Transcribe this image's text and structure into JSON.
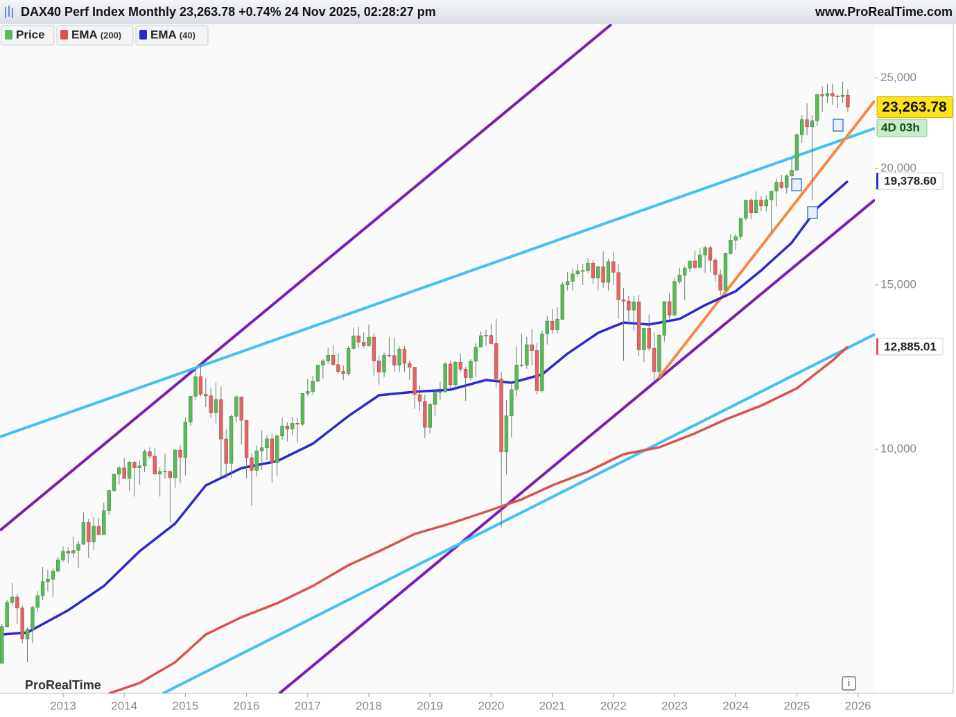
{
  "chart_data": {
    "type": "candlestick",
    "title": "DAX40 Perf Index Monthly 23,263.78 +0.74% 24 Nov 2025, 02:28:27 pm",
    "source": "www.ProRealTime.com",
    "watermark": "ProRealTime",
    "countdown": "4D 03h",
    "price_name": "Price",
    "up_color": "#5cb85c",
    "down_color": "#e06666",
    "log_scale": true,
    "ylim": [
      5477,
      28536
    ],
    "yticks": [
      {
        "value": 10000,
        "label": "10,000"
      },
      {
        "value": 15000,
        "label": "15,000"
      },
      {
        "value": 20000,
        "label": "20,000"
      },
      {
        "value": 25000,
        "label": "25,000"
      }
    ],
    "xticks": [
      {
        "value": 12,
        "label": "2013"
      },
      {
        "value": 24,
        "label": "2014"
      },
      {
        "value": 36,
        "label": "2015"
      },
      {
        "value": 48,
        "label": "2016"
      },
      {
        "value": 60,
        "label": "2017"
      },
      {
        "value": 72,
        "label": "2018"
      },
      {
        "value": 84,
        "label": "2019"
      },
      {
        "value": 96,
        "label": "2020"
      },
      {
        "value": 108,
        "label": "2021"
      },
      {
        "value": 120,
        "label": "2022"
      },
      {
        "value": 132,
        "label": "2023"
      },
      {
        "value": 144,
        "label": "2024"
      },
      {
        "value": 156,
        "label": "2025"
      },
      {
        "value": 168,
        "label": "2026"
      }
    ],
    "open": [
      5900,
      6458,
      6856,
      6947,
      6761,
      6264,
      6416,
      6772,
      6970,
      7216,
      7260,
      7405,
      7612,
      7776,
      7742,
      7795,
      7914,
      8349,
      7959,
      8276,
      8103,
      8594,
      9033,
      9405,
      9552,
      9306,
      9692,
      9556,
      9603,
      9943,
      9833,
      9407,
      9470,
      9474,
      9326,
      9980,
      9805,
      10694,
      11401,
      11966,
      11454,
      11413,
      10945,
      11309,
      10259,
      9660,
      10850,
      11382,
      10743,
      9798,
      9495,
      9965,
      10039,
      10263,
      9680,
      10337,
      10592,
      10511,
      10665,
      10640,
      11481,
      11535,
      11834,
      12313,
      12438,
      12615,
      12325,
      12118,
      12056,
      12829,
      13230,
      13024,
      12918,
      13189,
      12436,
      12097,
      12612,
      12605,
      12306,
      12806,
      12364,
      12247,
      11447,
      11257,
      10559,
      11173,
      11516,
      11526,
      12344,
      11727,
      12399,
      12189,
      11939,
      12428,
      12867,
      13236,
      13249,
      12982,
      11890,
      9936,
      10862,
      11587,
      12311,
      12313,
      12945,
      12761,
      11556,
      13291,
      13719,
      13433,
      13786,
      15008,
      15136,
      15421,
      15531,
      15544,
      15835,
      15261,
      15689,
      15100,
      15885,
      15471,
      14461,
      14415,
      14098,
      14388,
      12784,
      13484,
      12835,
      12114,
      13253,
      14397,
      13924,
      15128,
      15365,
      15629,
      15922,
      15664,
      16148,
      16447,
      15947,
      15387,
      14810,
      16215,
      16752,
      16904,
      17678,
      18492,
      17932,
      18498,
      18235,
      18509,
      18907,
      19325,
      19078,
      19626,
      19909,
      21732,
      22551,
      22163,
      22497,
      23997,
      23910,
      24065,
      23902,
      23881,
      23958
    ],
    "high": [
      6500,
      6900,
      7195,
      7000,
      6800,
      6450,
      6800,
      7050,
      7480,
      7430,
      7460,
      7670,
      7870,
      7850,
      8060,
      7980,
      8560,
      8420,
      8460,
      8440,
      8770,
      9050,
      9420,
      9600,
      9790,
      9720,
      9720,
      9730,
      10000,
      10050,
      10030,
      9570,
      9890,
      9480,
      10000,
      10100,
      10820,
      11400,
      12220,
      12390,
      11920,
      11640,
      11800,
      11670,
      10500,
      10900,
      11430,
      11390,
      10750,
      9900,
      10100,
      10480,
      10350,
      10400,
      10380,
      10800,
      10690,
      10830,
      10800,
      11480,
      11900,
      11990,
      12310,
      12490,
      12850,
      12950,
      12680,
      12300,
      12900,
      13500,
      13530,
      13340,
      13600,
      13300,
      12600,
      12700,
      13200,
      13170,
      12890,
      12900,
      12450,
      12250,
      11700,
      11440,
      11200,
      11600,
      11820,
      12400,
      12440,
      12440,
      12660,
      12250,
      12490,
      12990,
      13370,
      13430,
      13640,
      13800,
      12100,
      11300,
      11800,
      12900,
      13300,
      13200,
      13450,
      13000,
      13400,
      13900,
      14130,
      14200,
      15100,
      15500,
      15600,
      15800,
      15800,
      16030,
      15950,
      15720,
      16300,
      16000,
      16290,
      15800,
      14900,
      14600,
      14600,
      14650,
      13450,
      13950,
      13350,
      13300,
      14400,
      14700,
      15270,
      15650,
      15700,
      15900,
      16330,
      16430,
      16530,
      16530,
      16040,
      15580,
      16220,
      17000,
      17030,
      17700,
      18500,
      18570,
      18900,
      18680,
      18700,
      18900,
      19500,
      19680,
      19700,
      20520,
      21800,
      22800,
      23480,
      22800,
      24000,
      24480,
      24640,
      24650,
      24000,
      24770,
      24300
    ],
    "low": [
      5900,
      6450,
      6800,
      6500,
      6200,
      5914,
      6200,
      6700,
      6900,
      7050,
      6950,
      7380,
      7580,
      7550,
      7650,
      7460,
      7900,
      7650,
      7800,
      8100,
      8100,
      8500,
      9000,
      9170,
      9300,
      9020,
      8900,
      9170,
      9450,
      9770,
      9400,
      8900,
      9300,
      8350,
      9100,
      9200,
      9380,
      10600,
      11300,
      11400,
      11100,
      10800,
      10650,
      9340,
      9300,
      9330,
      10700,
      10120,
      9310,
      8700,
      9350,
      9500,
      9730,
      9210,
      9370,
      10250,
      10200,
      10350,
      10170,
      10600,
      11400,
      11450,
      11800,
      11900,
      12350,
      12300,
      12050,
      11870,
      12000,
      12800,
      12850,
      12850,
      12880,
      12000,
      11730,
      11950,
      12550,
      12100,
      12100,
      12100,
      11870,
      11050,
      11000,
      10280,
      10400,
      10860,
      11300,
      11500,
      11620,
      11620,
      12100,
      11270,
      11850,
      11950,
      12860,
      12900,
      12950,
      11650,
      8250,
      9400,
      10300,
      11400,
      12250,
      12200,
      12300,
      11450,
      11500,
      12950,
      13300,
      13300,
      13750,
      14800,
      14800,
      15300,
      15000,
      15450,
      15050,
      14800,
      14900,
      14800,
      15000,
      13800,
      12440,
      13600,
      13380,
      12600,
      12400,
      12750,
      11860,
      11870,
      13050,
      13790,
      13900,
      15050,
      14460,
      15480,
      15600,
      15650,
      15450,
      15470,
      15140,
      14630,
      14800,
      16150,
      16350,
      16800,
      17600,
      17630,
      17900,
      17980,
      18000,
      17020,
      18200,
      19000,
      18800,
      19600,
      19900,
      21300,
      21700,
      18490,
      22200,
      23000,
      23500,
      23400,
      23200,
      23500,
      23000
    ],
    "close": [
      6458,
      6856,
      6947,
      6761,
      6264,
      6416,
      6772,
      6970,
      7216,
      7260,
      7405,
      7612,
      7776,
      7742,
      7795,
      7914,
      8349,
      7959,
      8276,
      8103,
      8594,
      9033,
      9405,
      9552,
      9306,
      9692,
      9556,
      9603,
      9943,
      9833,
      9407,
      9470,
      9474,
      9326,
      9980,
      9805,
      10694,
      11401,
      11966,
      11454,
      11413,
      10945,
      11309,
      10259,
      9660,
      10850,
      11382,
      10743,
      9798,
      9495,
      9965,
      10039,
      10263,
      9680,
      10337,
      10592,
      10511,
      10665,
      10640,
      11481,
      11535,
      11834,
      12313,
      12438,
      12615,
      12325,
      12118,
      12056,
      12829,
      13230,
      13024,
      12918,
      13189,
      12436,
      12097,
      12612,
      12605,
      12306,
      12806,
      12364,
      12247,
      11447,
      11257,
      10559,
      11173,
      11516,
      11526,
      12344,
      11727,
      12399,
      12189,
      11939,
      12428,
      12867,
      13236,
      13249,
      12982,
      11890,
      9936,
      10862,
      11587,
      12311,
      12313,
      12945,
      12761,
      11556,
      13291,
      13719,
      13433,
      13786,
      15008,
      15136,
      15421,
      15531,
      15544,
      15835,
      15261,
      15689,
      15100,
      15885,
      15471,
      14461,
      14415,
      14098,
      14388,
      12784,
      13484,
      12835,
      12114,
      13253,
      14397,
      13924,
      15128,
      15365,
      15629,
      15922,
      15664,
      16148,
      16447,
      15947,
      15387,
      14810,
      16215,
      16752,
      16904,
      17678,
      18492,
      17932,
      18498,
      18235,
      18509,
      18907,
      19325,
      19078,
      19626,
      19909,
      21732,
      22551,
      22163,
      22497,
      23997,
      23910,
      24065,
      23902,
      23881,
      23958,
      23263.78
    ],
    "series": [
      {
        "name": "EMA",
        "params": "(200)",
        "color": "#d9534f",
        "x": [
          21,
          27,
          34,
          40,
          47,
          54,
          61,
          68,
          74,
          81,
          88,
          95,
          102,
          108,
          115,
          122,
          129,
          136,
          142,
          149,
          156,
          163,
          166
        ],
        "values": [
          5477,
          5619,
          5915,
          6334,
          6610,
          6841,
          7139,
          7515,
          7777,
          8116,
          8328,
          8573,
          8841,
          9149,
          9467,
          9881,
          10051,
          10401,
          10764,
          11138,
          11625,
          12448,
          12885.01
        ]
      },
      {
        "name": "EMA",
        "params": "(40)",
        "color": "#2a2ad0",
        "x": [
          0,
          5,
          13,
          20,
          27,
          34,
          40,
          47,
          54,
          61,
          68,
          74,
          81,
          88,
          95,
          100,
          106,
          111,
          117,
          122,
          127,
          133,
          138,
          144,
          149,
          155,
          160,
          166
        ],
        "values": [
          6334,
          6366,
          6724,
          7139,
          7777,
          8328,
          9149,
          9549,
          9713,
          10138,
          10856,
          11427,
          11526,
          11585,
          11866,
          11785,
          12029,
          12663,
          13329,
          13675,
          13606,
          13793,
          14274,
          14770,
          15548,
          16650,
          18137,
          19378.6
        ]
      }
    ],
    "price_tags": [
      {
        "value": 23263.78,
        "label": "23,263.78",
        "color": "#ffe31a"
      },
      {
        "value": 19378.6,
        "label": "19,378.60",
        "color": "#2a2ad0"
      },
      {
        "value": 12885.01,
        "label": "12,885.01",
        "color": "#d9534f"
      }
    ]
  }
}
